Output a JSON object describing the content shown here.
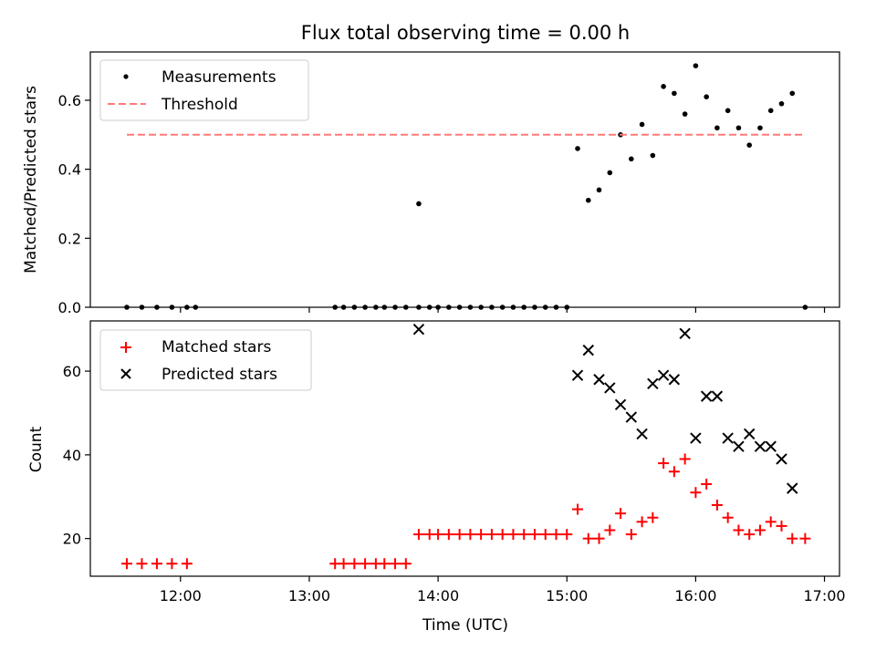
{
  "chart_data": [
    {
      "type": "scatter",
      "title": "Flux total observing time = 0.00 h",
      "xlabel": "",
      "ylabel": "Matched/Predicted stars",
      "xlim": [
        "11:18",
        "17:07"
      ],
      "ylim": [
        0,
        0.74
      ],
      "yticks": [
        0.0,
        0.2,
        0.4,
        0.6
      ],
      "ytick_labels": [
        "0.0",
        "0.2",
        "0.4",
        "0.6"
      ],
      "grid": false,
      "legend_position": "top-left",
      "series": [
        {
          "name": "Measurements",
          "marker": "dot",
          "color": "#000000",
          "x": [
            "11:35",
            "11:42",
            "11:49",
            "11:56",
            "12:03",
            "12:07",
            "13:12",
            "13:16",
            "13:21",
            "13:26",
            "13:31",
            "13:35",
            "13:40",
            "13:45",
            "13:51",
            "13:56",
            "13:51",
            "14:00",
            "14:05",
            "14:10",
            "14:15",
            "14:20",
            "14:25",
            "14:30",
            "14:35",
            "14:40",
            "14:45",
            "14:50",
            "14:55",
            "15:00",
            "15:05",
            "15:10",
            "15:15",
            "15:20",
            "15:25",
            "15:30",
            "15:35",
            "15:40",
            "15:45",
            "15:50",
            "15:55",
            "16:00",
            "16:05",
            "16:10",
            "16:15",
            "16:20",
            "16:25",
            "16:30",
            "16:35",
            "16:40",
            "16:45",
            "16:51"
          ],
          "y": [
            0,
            0,
            0,
            0,
            0,
            0,
            0,
            0,
            0,
            0,
            0,
            0,
            0,
            0,
            0,
            0,
            0.3,
            0,
            0,
            0,
            0,
            0,
            0,
            0,
            0,
            0,
            0,
            0,
            0,
            0,
            0.46,
            0.31,
            0.34,
            0.39,
            0.5,
            0.43,
            0.53,
            0.44,
            0.64,
            0.62,
            0.56,
            0.7,
            0.61,
            0.52,
            0.57,
            0.52,
            0.47,
            0.52,
            0.57,
            0.59,
            0.62,
            0.0
          ]
        },
        {
          "name": "Threshold",
          "style": "dashed",
          "color": "#ff7a7a",
          "x": [
            "11:35",
            "16:51"
          ],
          "y": [
            0.5,
            0.5
          ]
        }
      ]
    },
    {
      "type": "scatter",
      "title": "",
      "xlabel": "Time (UTC)",
      "ylabel": "Count",
      "xlim": [
        "11:18",
        "17:07"
      ],
      "ylim": [
        11,
        72
      ],
      "xticks": [
        "12:00",
        "13:00",
        "14:00",
        "15:00",
        "16:00",
        "17:00"
      ],
      "xtick_labels": [
        "12:00",
        "13:00",
        "14:00",
        "15:00",
        "16:00",
        "17:00"
      ],
      "yticks": [
        20,
        40,
        60
      ],
      "ytick_labels": [
        "20",
        "40",
        "60"
      ],
      "grid": false,
      "legend_position": "top-left",
      "series": [
        {
          "name": "Matched stars",
          "marker": "plus",
          "color": "#ff0000",
          "x": [
            "11:35",
            "11:42",
            "11:49",
            "11:56",
            "12:03",
            "13:12",
            "13:16",
            "13:21",
            "13:26",
            "13:31",
            "13:35",
            "13:40",
            "13:45",
            "13:51",
            "13:56",
            "14:00",
            "14:05",
            "14:10",
            "14:15",
            "14:20",
            "14:25",
            "14:30",
            "14:35",
            "14:40",
            "14:45",
            "14:50",
            "14:55",
            "15:00",
            "15:05",
            "15:10",
            "15:15",
            "15:20",
            "15:25",
            "15:30",
            "15:35",
            "15:40",
            "15:45",
            "15:50",
            "15:55",
            "16:00",
            "16:05",
            "16:10",
            "16:15",
            "16:20",
            "16:25",
            "16:30",
            "16:35",
            "16:40",
            "16:45",
            "16:51"
          ],
          "y": [
            14,
            14,
            14,
            14,
            14,
            14,
            14,
            14,
            14,
            14,
            14,
            14,
            14,
            21,
            21,
            21,
            21,
            21,
            21,
            21,
            21,
            21,
            21,
            21,
            21,
            21,
            21,
            21,
            27,
            20,
            20,
            22,
            26,
            21,
            24,
            25,
            38,
            36,
            39,
            31,
            33,
            28,
            25,
            22,
            21,
            22,
            24,
            23,
            20,
            20
          ]
        },
        {
          "name": "Predicted stars",
          "marker": "x",
          "color": "#000000",
          "x": [
            "13:51",
            "15:05",
            "15:10",
            "15:15",
            "15:20",
            "15:25",
            "15:30",
            "15:35",
            "15:40",
            "15:45",
            "15:50",
            "15:55",
            "16:00",
            "16:05",
            "16:10",
            "16:15",
            "16:20",
            "16:25",
            "16:30",
            "16:35",
            "16:40",
            "16:45"
          ],
          "y": [
            70,
            59,
            65,
            58,
            56,
            52,
            49,
            45,
            57,
            59,
            58,
            69,
            44,
            54,
            54,
            44,
            42,
            45,
            42,
            42,
            39,
            32
          ]
        }
      ]
    }
  ]
}
